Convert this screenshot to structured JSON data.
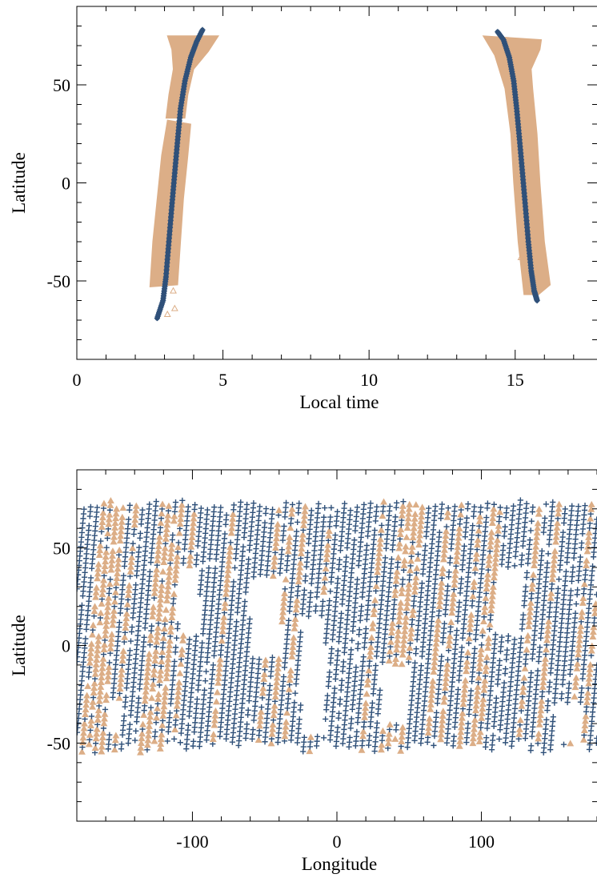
{
  "colors": {
    "series_a": "#2f5079",
    "series_b": "#dcae87",
    "axes": "#000000"
  },
  "chart_data": [
    {
      "type": "scatter",
      "xlabel": "Local time",
      "ylabel": "Latitude",
      "xlim": [
        0,
        17.8
      ],
      "ylim": [
        -90,
        90
      ],
      "xticks": [
        0,
        5,
        10,
        15
      ],
      "yticks": [
        -50,
        0,
        50
      ],
      "x_minor_step": 1,
      "y_minor_step": 10,
      "grid": false,
      "legend": "none",
      "series": [
        {
          "marker": "plus",
          "color": "#2f5079",
          "tracks": [
            {
              "points": [
                [
                  2.75,
                  -69
                ],
                [
                  2.95,
                  -60
                ],
                [
                  3.05,
                  -48
                ],
                [
                  3.15,
                  -30
                ],
                [
                  3.25,
                  -12
                ],
                [
                  3.35,
                  5
                ],
                [
                  3.45,
                  22
                ],
                [
                  3.55,
                  38
                ],
                [
                  3.7,
                  52
                ],
                [
                  3.9,
                  64
                ],
                [
                  4.1,
                  72
                ],
                [
                  4.3,
                  78
                ]
              ]
            },
            {
              "points": [
                [
                  14.4,
                  77
                ],
                [
                  14.6,
                  73
                ],
                [
                  14.8,
                  64
                ],
                [
                  14.95,
                  52
                ],
                [
                  15.05,
                  38
                ],
                [
                  15.15,
                  22
                ],
                [
                  15.25,
                  5
                ],
                [
                  15.35,
                  -12
                ],
                [
                  15.45,
                  -30
                ],
                [
                  15.55,
                  -45
                ],
                [
                  15.65,
                  -55
                ],
                [
                  15.75,
                  -60
                ]
              ]
            }
          ]
        },
        {
          "marker": "triangle",
          "color": "#dcae87",
          "bands": [
            {
              "left": [
                [
                  2.5,
                  -53
                ],
                [
                  2.6,
                  -30
                ],
                [
                  2.75,
                  -8
                ],
                [
                  2.9,
                  14
                ],
                [
                  3.1,
                  32
                ]
              ],
              "right": [
                [
                  3.9,
                  30
                ],
                [
                  3.8,
                  14
                ],
                [
                  3.65,
                  -8
                ],
                [
                  3.55,
                  -30
                ],
                [
                  3.45,
                  -52
                ]
              ]
            },
            {
              "left": [
                [
                  3.05,
                  33
                ],
                [
                  3.15,
                  45
                ],
                [
                  3.3,
                  58
                ],
                [
                  3.25,
                  68
                ],
                [
                  3.1,
                  75
                ]
              ],
              "right": [
                [
                  4.85,
                  75
                ],
                [
                  4.5,
                  67
                ],
                [
                  4.0,
                  58
                ],
                [
                  3.8,
                  45
                ],
                [
                  3.7,
                  33
                ]
              ]
            },
            {
              "left": [
                [
                  13.9,
                  75
                ],
                [
                  14.3,
                  65
                ],
                [
                  14.65,
                  48
                ],
                [
                  14.85,
                  25
                ],
                [
                  14.95,
                  0
                ],
                [
                  15.1,
                  -30
                ],
                [
                  15.3,
                  -57
                ]
              ],
              "right": [
                [
                  15.8,
                  -57
                ],
                [
                  16.2,
                  -52
                ],
                [
                  16.0,
                  -30
                ],
                [
                  15.85,
                  0
                ],
                [
                  15.75,
                  25
                ],
                [
                  15.6,
                  48
                ],
                [
                  15.55,
                  58
                ],
                [
                  15.85,
                  68
                ],
                [
                  15.9,
                  73
                ]
              ]
            }
          ],
          "scattered_points": [
            [
              3.35,
              -45
            ],
            [
              3.3,
              -55
            ],
            [
              3.35,
              -64
            ],
            [
              3.1,
              -67
            ],
            [
              15.2,
              -38
            ],
            [
              15.35,
              -42
            ]
          ]
        }
      ]
    },
    {
      "type": "scatter",
      "xlabel": "Longitude",
      "ylabel": "Latitude",
      "xlim": [
        -180,
        180
      ],
      "ylim": [
        -90,
        90
      ],
      "xticks": [
        -100,
        0,
        100
      ],
      "yticks": [
        -50,
        0,
        50
      ],
      "x_minor_step": 20,
      "y_minor_step": 10,
      "grid": false,
      "legend": "none",
      "coverage": {
        "lat_top": 75,
        "lat_bottom": -55,
        "track_tilt_deg_per_deg_lat": 0.12,
        "track_spacing_deg": 4.5,
        "gaps": [
          [
            -110,
            -95,
            5,
            40
          ],
          [
            -60,
            -38,
            -5,
            35
          ],
          [
            -25,
            -8,
            -45,
            15
          ],
          [
            30,
            50,
            -40,
            -10
          ],
          [
            110,
            128,
            5,
            40
          ],
          [
            150,
            170,
            -50,
            -30
          ],
          [
            -160,
            -150,
            -45,
            -28
          ]
        ]
      },
      "series": [
        {
          "marker": "plus",
          "color": "#2f5079"
        },
        {
          "marker": "triangle",
          "color": "#dcae87"
        }
      ]
    }
  ]
}
